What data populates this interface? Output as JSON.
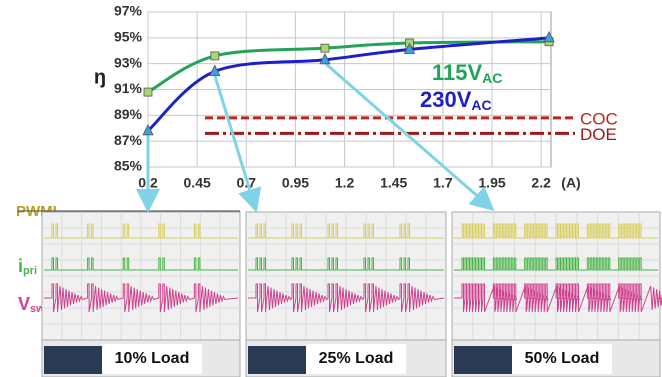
{
  "chart_data": {
    "type": "line",
    "y_label": "ŋ",
    "x_unit": "(A)",
    "x": [
      0.2,
      0.54,
      1.1,
      1.53,
      2.24
    ],
    "series": [
      {
        "name": "115V",
        "name_sub": "AC",
        "color": "#22a35a",
        "marker": "square",
        "values": [
          90.8,
          93.6,
          94.2,
          94.6,
          94.7
        ]
      },
      {
        "name": "230V",
        "name_sub": "AC",
        "color": "#1f1fc8",
        "marker": "triangle",
        "values": [
          87.8,
          92.4,
          93.3,
          94.1,
          95.0
        ]
      }
    ],
    "xlim": [
      0.2,
      2.25
    ],
    "xticks": [
      0.2,
      0.45,
      0.7,
      0.95,
      1.2,
      1.45,
      1.7,
      1.95,
      2.2
    ],
    "ylim": [
      85,
      97
    ],
    "yticks": [
      {
        "value": 85,
        "label": "85%"
      },
      {
        "value": 87,
        "label": "87%"
      },
      {
        "value": 89,
        "label": "89%"
      },
      {
        "value": 91,
        "label": "91%"
      },
      {
        "value": 93,
        "label": "93%"
      },
      {
        "value": 95,
        "label": "95%"
      },
      {
        "value": 97,
        "label": "97%"
      }
    ],
    "grid": true,
    "reference_lines": [
      {
        "label": "COC",
        "value": 88.8,
        "color": "#c0241c",
        "style": "dash"
      },
      {
        "label": "DOE",
        "value": 87.6,
        "color": "#a01818",
        "style": "dashdot"
      }
    ]
  },
  "scope": {
    "signals": [
      {
        "label": "PWML",
        "sub": ""
      },
      {
        "label": "i",
        "sub": "pri"
      },
      {
        "label": "V",
        "sub": "sw"
      }
    ],
    "panels": [
      {
        "label": "10% Load"
      },
      {
        "label": "25% Load"
      },
      {
        "label": "50% Load"
      }
    ]
  }
}
